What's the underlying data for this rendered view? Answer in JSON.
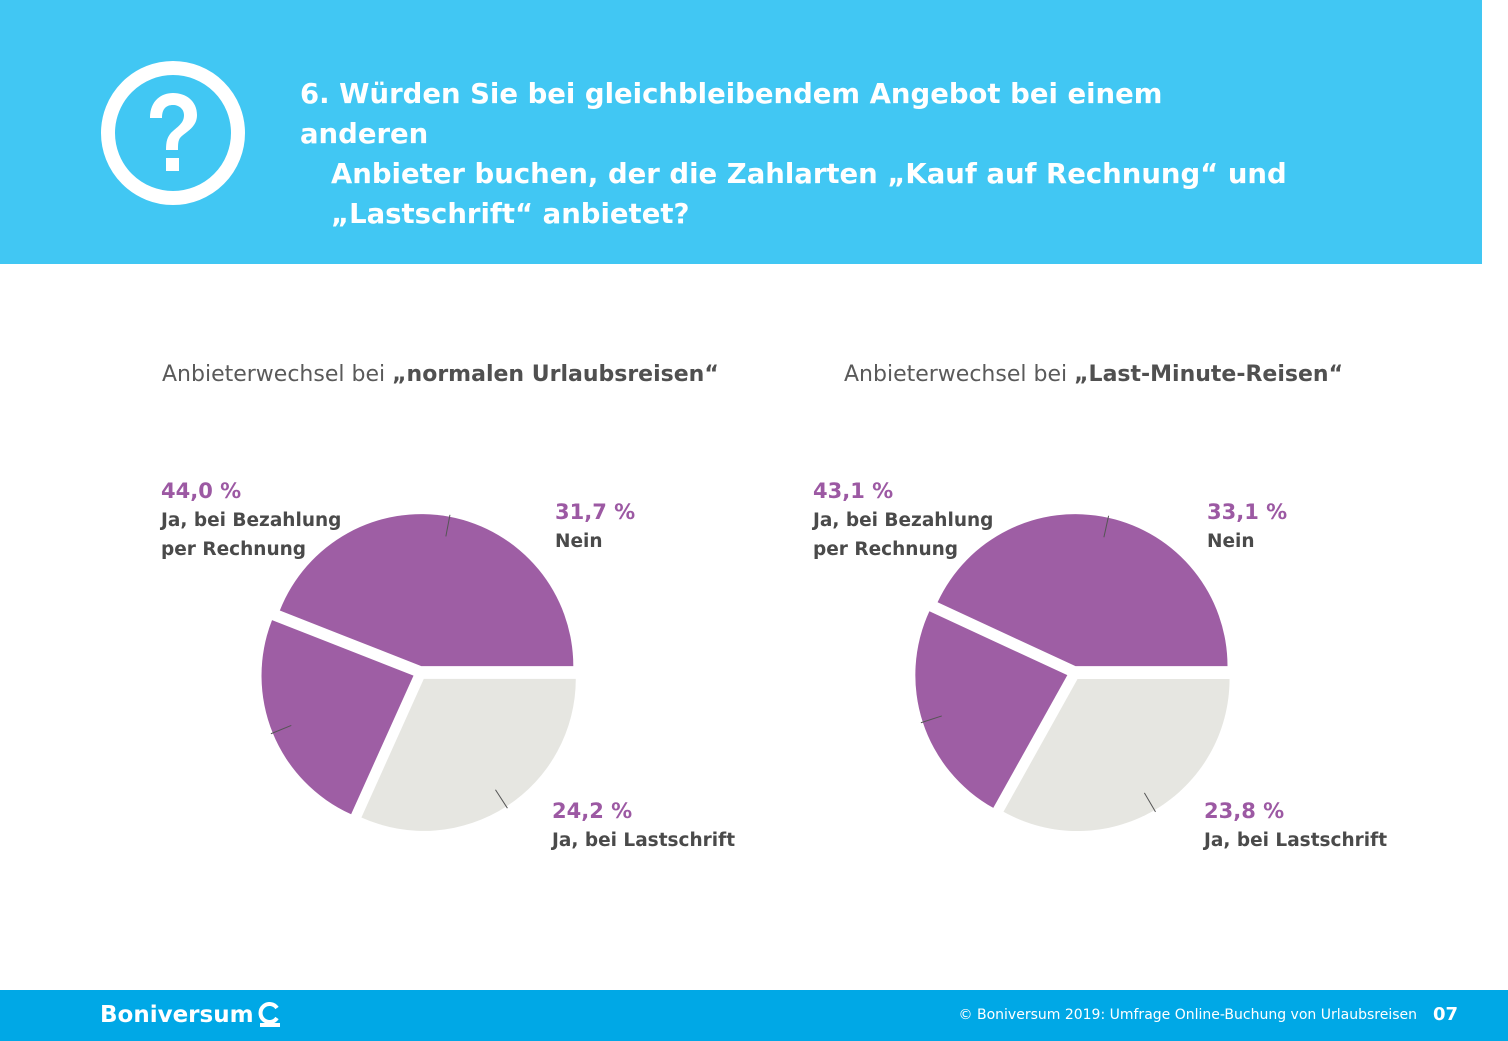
{
  "header": {
    "question_line1": "6. Würden Sie bei gleichbleibendem Angebot bei einem anderen",
    "question_line2": "Anbieter buchen, der die Zahlarten „Kauf auf Rechnung“ und",
    "question_line3": "„Lastschrift“ anbietet?",
    "icon": "question-mark-circle-icon"
  },
  "colors": {
    "header_bg": "#41c7f3",
    "footer_bg": "#00a8e6",
    "purple": "#9e5ea4",
    "grey": "#e6e6e1",
    "pct_text": "#9c59a3"
  },
  "chart_data": [
    {
      "type": "pie",
      "title_prefix": "Anbieterwechsel bei ",
      "title_bold": "„normalen Urlaubsreisen“",
      "slices": [
        {
          "value": 31.7,
          "pct_label": "31,7 %",
          "label": "Nein",
          "color": "#e6e6e1"
        },
        {
          "value": 24.2,
          "pct_label": "24,2 %",
          "label": "Ja, bei Lastschrift",
          "color": "#9e5ea4"
        },
        {
          "value": 44.0,
          "pct_label": "44,0 %",
          "label_line1": "Ja, bei Bezahlung",
          "label_line2": "per Rechnung",
          "color": "#9e5ea4"
        }
      ]
    },
    {
      "type": "pie",
      "title_prefix": "Anbieterwechsel bei ",
      "title_bold": "„Last-Minute-Reisen“",
      "slices": [
        {
          "value": 33.1,
          "pct_label": "33,1 %",
          "label": "Nein",
          "color": "#e6e6e1"
        },
        {
          "value": 23.8,
          "pct_label": "23,8 %",
          "label": "Ja, bei Lastschrift",
          "color": "#9e5ea4"
        },
        {
          "value": 43.1,
          "pct_label": "43,1 %",
          "label_line1": "Ja, bei Bezahlung",
          "label_line2": "per Rechnung",
          "color": "#9e5ea4"
        }
      ]
    }
  ],
  "footer": {
    "logo": "Boniversum",
    "copyright": "© Boniversum 2019: Umfrage Online-Buchung von Urlaubsreisen",
    "page": "07"
  }
}
